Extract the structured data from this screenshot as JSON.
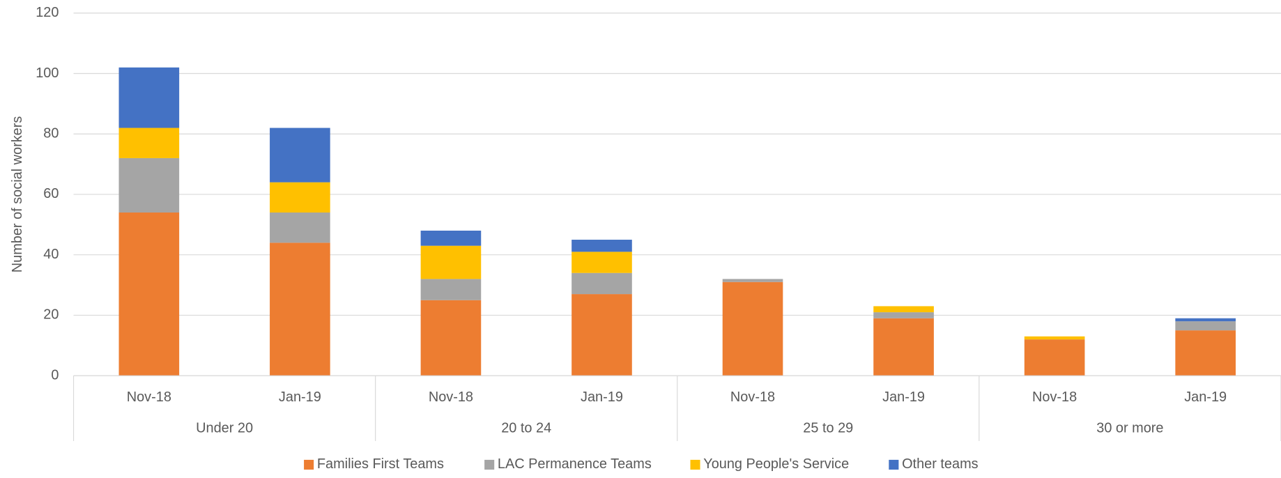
{
  "chart_data": {
    "type": "stacked_bar",
    "y_label": "Number of social workers",
    "categories": [
      "Nov-18",
      "Jan-19",
      "Nov-18",
      "Jan-19",
      "Nov-18",
      "Jan-19",
      "Nov-18",
      "Jan-19"
    ],
    "groups": [
      "Under 20",
      "20 to 24",
      "25 to 29",
      "30 or more"
    ],
    "series": [
      {
        "name": "Families First Teams",
        "color": "#ed7d31",
        "values": [
          54,
          44,
          25,
          27,
          31,
          19,
          12,
          15
        ]
      },
      {
        "name": "LAC Permanence Teams",
        "color": "#a5a5a5",
        "values": [
          18,
          10,
          7,
          7,
          1,
          2,
          0,
          3
        ]
      },
      {
        "name": "Young People's Service",
        "color": "#ffc000",
        "values": [
          10,
          10,
          11,
          7,
          0,
          2,
          1,
          0
        ]
      },
      {
        "name": "Other teams",
        "color": "#4472c4",
        "values": [
          20,
          18,
          5,
          4,
          0,
          0,
          0,
          1
        ]
      }
    ],
    "ylim": [
      0,
      120
    ],
    "yticks": [
      0,
      20,
      40,
      60,
      80,
      100,
      120
    ],
    "grid": true,
    "legend": "bottom"
  }
}
